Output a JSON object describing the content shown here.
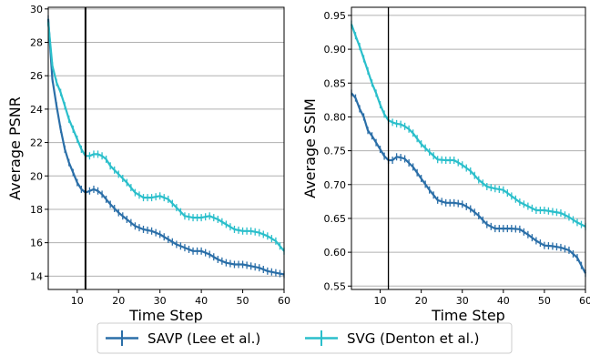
{
  "chart_data": [
    {
      "type": "line",
      "xlabel": "Time Step",
      "ylabel": "Average PSNR",
      "xlim": [
        3,
        60
      ],
      "ylim": [
        13.2,
        30.1
      ],
      "xticks": [
        10,
        20,
        30,
        40,
        50,
        60
      ],
      "yticks": [
        14,
        16,
        18,
        20,
        22,
        24,
        26,
        28,
        30
      ],
      "ygrid": true,
      "vline_x": 12,
      "series": [
        {
          "name": "SAVP (Lee et al.)",
          "color": "#2b6fa8",
          "x": [
            3,
            4,
            5,
            6,
            7,
            8,
            9,
            10,
            11,
            12,
            13,
            14,
            15,
            16,
            18,
            20,
            22,
            24,
            26,
            28,
            30,
            32,
            34,
            36,
            38,
            40,
            42,
            44,
            46,
            48,
            50,
            52,
            54,
            56,
            58,
            60
          ],
          "y": [
            29.4,
            25.8,
            24.2,
            22.8,
            21.6,
            20.8,
            20.2,
            19.6,
            19.2,
            19.0,
            19.1,
            19.2,
            19.1,
            18.9,
            18.3,
            17.8,
            17.4,
            17.0,
            16.8,
            16.7,
            16.5,
            16.2,
            15.9,
            15.7,
            15.5,
            15.5,
            15.3,
            15.0,
            14.8,
            14.7,
            14.7,
            14.6,
            14.5,
            14.3,
            14.2,
            14.1
          ]
        },
        {
          "name": "SVG (Denton et al.)",
          "color": "#2bbfcb",
          "x": [
            3,
            4,
            5,
            6,
            7,
            8,
            9,
            10,
            11,
            12,
            13,
            14,
            15,
            16,
            17,
            18,
            20,
            22,
            24,
            26,
            28,
            30,
            32,
            34,
            36,
            38,
            40,
            42,
            44,
            46,
            48,
            50,
            52,
            54,
            56,
            58,
            60
          ],
          "y": [
            29.2,
            26.6,
            25.6,
            25.0,
            24.2,
            23.4,
            22.8,
            22.2,
            21.6,
            21.2,
            21.2,
            21.3,
            21.3,
            21.2,
            21.0,
            20.6,
            20.1,
            19.6,
            19.0,
            18.7,
            18.7,
            18.8,
            18.6,
            18.1,
            17.6,
            17.5,
            17.5,
            17.6,
            17.4,
            17.1,
            16.8,
            16.7,
            16.7,
            16.6,
            16.4,
            16.1,
            15.5
          ]
        }
      ]
    },
    {
      "type": "line",
      "xlabel": "Time Step",
      "ylabel": "Average SSIM",
      "xlim": [
        3,
        60
      ],
      "ylim": [
        0.545,
        0.962
      ],
      "xticks": [
        10,
        20,
        30,
        40,
        50,
        60
      ],
      "yticks": [
        0.55,
        0.6,
        0.65,
        0.7,
        0.75,
        0.8,
        0.85,
        0.9,
        0.95
      ],
      "ygrid": true,
      "vline_x": 12,
      "series": [
        {
          "name": "SAVP (Lee et al.)",
          "color": "#2b6fa8",
          "x": [
            3,
            4,
            5,
            6,
            7,
            8,
            9,
            10,
            11,
            12,
            13,
            14,
            15,
            16,
            17,
            18,
            20,
            22,
            24,
            26,
            28,
            30,
            32,
            34,
            36,
            38,
            40,
            42,
            44,
            46,
            48,
            50,
            52,
            54,
            56,
            58,
            60
          ],
          "y": [
            0.835,
            0.828,
            0.812,
            0.8,
            0.78,
            0.772,
            0.762,
            0.752,
            0.742,
            0.736,
            0.736,
            0.741,
            0.74,
            0.738,
            0.732,
            0.726,
            0.709,
            0.692,
            0.677,
            0.673,
            0.673,
            0.671,
            0.664,
            0.654,
            0.641,
            0.635,
            0.635,
            0.635,
            0.634,
            0.626,
            0.617,
            0.61,
            0.609,
            0.607,
            0.603,
            0.592,
            0.569
          ]
        },
        {
          "name": "SVG (Denton et al.)",
          "color": "#2bbfcb",
          "x": [
            3,
            4,
            5,
            6,
            7,
            8,
            9,
            10,
            11,
            12,
            13,
            14,
            15,
            16,
            17,
            18,
            20,
            22,
            24,
            26,
            28,
            30,
            32,
            34,
            36,
            38,
            40,
            42,
            44,
            46,
            48,
            50,
            52,
            54,
            56,
            58,
            60
          ],
          "y": [
            0.937,
            0.92,
            0.904,
            0.886,
            0.868,
            0.85,
            0.835,
            0.818,
            0.804,
            0.795,
            0.792,
            0.79,
            0.789,
            0.786,
            0.782,
            0.776,
            0.76,
            0.748,
            0.737,
            0.736,
            0.736,
            0.729,
            0.72,
            0.707,
            0.697,
            0.694,
            0.692,
            0.683,
            0.674,
            0.668,
            0.662,
            0.662,
            0.66,
            0.658,
            0.652,
            0.644,
            0.638
          ]
        }
      ]
    }
  ],
  "legend": {
    "placement": "bottom-center",
    "entries": [
      {
        "label": "SAVP (Lee et al.)",
        "color": "#2b6fa8"
      },
      {
        "label": "SVG (Denton et al.)",
        "color": "#2bbfcb"
      }
    ]
  }
}
